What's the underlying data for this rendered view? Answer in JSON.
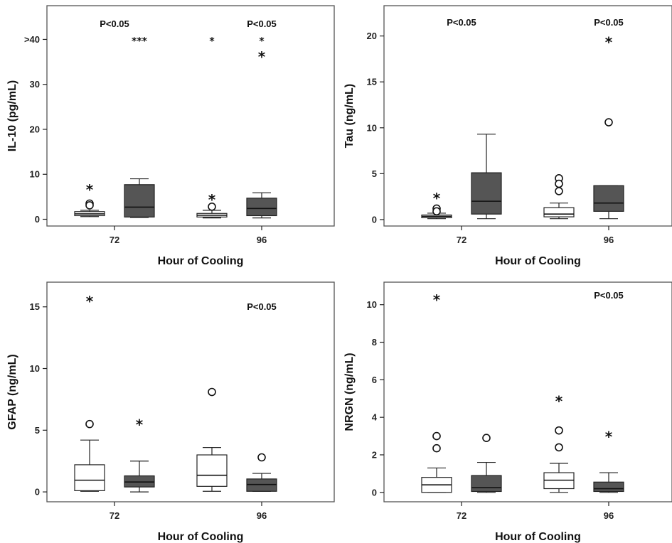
{
  "chart_data": [
    {
      "type": "box",
      "ylabel": "IL-10 (pg/mL)",
      "xlabel": "Hour of Cooling",
      "categories": [
        "72",
        "96"
      ],
      "yticks": [
        0,
        10,
        20,
        30,
        40
      ],
      "ytick_labels": [
        "0",
        "10",
        "20",
        "30",
        ">40"
      ],
      "ylim": [
        -1.5,
        47.5
      ],
      "box_colors": [
        "#ffffff",
        "#555555"
      ],
      "boxes": [
        {
          "group": "72",
          "color_index": 0,
          "min": 0.6,
          "q1": 0.8,
          "median": 1.2,
          "q3": 1.7,
          "max": 2.0
        },
        {
          "group": "72",
          "color_index": 1,
          "min": 0.4,
          "q1": 0.5,
          "median": 2.7,
          "q3": 7.7,
          "max": 9.0
        },
        {
          "group": "96",
          "color_index": 0,
          "min": 0.3,
          "q1": 0.5,
          "median": 0.9,
          "q3": 1.3,
          "max": 2.0
        },
        {
          "group": "96",
          "color_index": 1,
          "min": 0.3,
          "q1": 0.8,
          "median": 2.4,
          "q3": 4.7,
          "max": 5.9
        }
      ],
      "outliers": [
        {
          "box": 0,
          "value": 6.7,
          "symbol": "*"
        },
        {
          "box": 0,
          "value": 3.5,
          "symbol": "o"
        },
        {
          "box": 0,
          "value": 3.1,
          "symbol": "o"
        },
        {
          "box": 2,
          "value": 4.5,
          "symbol": "*"
        },
        {
          "box": 2,
          "value": 2.8,
          "symbol": "o"
        },
        {
          "box": 3,
          "value": 36.3,
          "symbol": "*"
        }
      ],
      "annotations": [
        {
          "text": "P<0.05",
          "group": "72",
          "value": 43.5
        },
        {
          "text": "***",
          "box": 1,
          "value": 40
        },
        {
          "text": "P<0.05",
          "group": "96",
          "value": 43.5
        },
        {
          "text": "*",
          "box": 2,
          "value": 40
        },
        {
          "text": "*",
          "box": 3,
          "value": 40
        }
      ]
    },
    {
      "type": "box",
      "ylabel": "Tau (ng/mL)",
      "xlabel": "Hour of Cooling",
      "categories": [
        "72",
        "96"
      ],
      "yticks": [
        0,
        5,
        10,
        15,
        20
      ],
      "ytick_labels": [
        "0",
        "5",
        "10",
        "15",
        "20"
      ],
      "ylim": [
        -0.7,
        23.3
      ],
      "box_colors": [
        "#ffffff",
        "#555555"
      ],
      "boxes": [
        {
          "group": "72",
          "color_index": 0,
          "min": 0.1,
          "q1": 0.2,
          "median": 0.35,
          "q3": 0.5,
          "max": 0.7
        },
        {
          "group": "72",
          "color_index": 1,
          "min": 0.1,
          "q1": 0.6,
          "median": 2.0,
          "q3": 5.1,
          "max": 9.3
        },
        {
          "group": "96",
          "color_index": 0,
          "min": 0.1,
          "q1": 0.3,
          "median": 0.6,
          "q3": 1.3,
          "max": 1.8
        },
        {
          "group": "96",
          "color_index": 1,
          "min": 0.1,
          "q1": 0.9,
          "median": 1.8,
          "q3": 3.7,
          "max": 3.7
        }
      ],
      "outliers": [
        {
          "box": 0,
          "value": 2.4,
          "symbol": "*"
        },
        {
          "box": 0,
          "value": 1.2,
          "symbol": "o"
        },
        {
          "box": 0,
          "value": 0.9,
          "symbol": "o"
        },
        {
          "box": 2,
          "value": 4.5,
          "symbol": "o"
        },
        {
          "box": 2,
          "value": 3.9,
          "symbol": "o"
        },
        {
          "box": 2,
          "value": 3.1,
          "symbol": "o"
        },
        {
          "box": 3,
          "value": 19.4,
          "symbol": "*"
        },
        {
          "box": 3,
          "value": 10.6,
          "symbol": "o"
        }
      ],
      "annotations": [
        {
          "text": "P<0.05",
          "group": "72",
          "value": 21.5
        },
        {
          "text": "P<0.05",
          "group": "96",
          "value": 21.5
        }
      ]
    },
    {
      "type": "box",
      "ylabel": "GFAP (ng/mL)",
      "xlabel": "Hour of Cooling",
      "categories": [
        "72",
        "96"
      ],
      "yticks": [
        0,
        5,
        10,
        15
      ],
      "ytick_labels": [
        "0",
        "5",
        "10",
        "15"
      ],
      "ylim": [
        -0.8,
        17.0
      ],
      "box_colors": [
        "#ffffff",
        "#555555"
      ],
      "boxes": [
        {
          "group": "72",
          "color_index": 0,
          "min": 0.05,
          "q1": 0.1,
          "median": 0.95,
          "q3": 2.2,
          "max": 4.2
        },
        {
          "group": "72",
          "color_index": 1,
          "min": 0.0,
          "q1": 0.4,
          "median": 0.8,
          "q3": 1.3,
          "max": 2.5
        },
        {
          "group": "96",
          "color_index": 0,
          "min": 0.05,
          "q1": 0.45,
          "median": 1.35,
          "q3": 3.0,
          "max": 3.6
        },
        {
          "group": "96",
          "color_index": 1,
          "min": 0.05,
          "q1": 0.05,
          "median": 0.6,
          "q3": 1.05,
          "max": 1.5
        }
      ],
      "outliers": [
        {
          "box": 0,
          "value": 15.5,
          "symbol": "*"
        },
        {
          "box": 0,
          "value": 5.5,
          "symbol": "o"
        },
        {
          "box": 1,
          "value": 5.5,
          "symbol": "*"
        },
        {
          "box": 2,
          "value": 8.1,
          "symbol": "o"
        },
        {
          "box": 3,
          "value": 2.8,
          "symbol": "o"
        }
      ],
      "annotations": [
        {
          "text": "P<0.05",
          "group": "96",
          "value": 15.0
        }
      ]
    },
    {
      "type": "box",
      "ylabel": "NRGN (ng/mL)",
      "xlabel": "Hour of Cooling",
      "categories": [
        "72",
        "96"
      ],
      "yticks": [
        0,
        2,
        4,
        6,
        8,
        10
      ],
      "ytick_labels": [
        "0",
        "2",
        "4",
        "6",
        "8",
        "10"
      ],
      "ylim": [
        -0.5,
        11.2
      ],
      "box_colors": [
        "#ffffff",
        "#555555"
      ],
      "boxes": [
        {
          "group": "72",
          "color_index": 0,
          "min": 0.0,
          "q1": 0.0,
          "median": 0.4,
          "q3": 0.8,
          "max": 1.3
        },
        {
          "group": "72",
          "color_index": 1,
          "min": 0.0,
          "q1": 0.05,
          "median": 0.25,
          "q3": 0.9,
          "max": 1.6
        },
        {
          "group": "96",
          "color_index": 0,
          "min": 0.0,
          "q1": 0.2,
          "median": 0.65,
          "q3": 1.05,
          "max": 1.55
        },
        {
          "group": "96",
          "color_index": 1,
          "min": 0.0,
          "q1": 0.05,
          "median": 0.2,
          "q3": 0.55,
          "max": 1.05
        }
      ],
      "outliers": [
        {
          "box": 0,
          "value": 10.3,
          "symbol": "*"
        },
        {
          "box": 0,
          "value": 3.0,
          "symbol": "o"
        },
        {
          "box": 0,
          "value": 2.35,
          "symbol": "o"
        },
        {
          "box": 1,
          "value": 2.9,
          "symbol": "o"
        },
        {
          "box": 2,
          "value": 4.9,
          "symbol": "*"
        },
        {
          "box": 2,
          "value": 3.3,
          "symbol": "o"
        },
        {
          "box": 2,
          "value": 2.4,
          "symbol": "o"
        },
        {
          "box": 3,
          "value": 3.0,
          "symbol": "*"
        }
      ],
      "annotations": [
        {
          "text": "P<0.05",
          "group": "96",
          "value": 10.5
        }
      ]
    }
  ]
}
